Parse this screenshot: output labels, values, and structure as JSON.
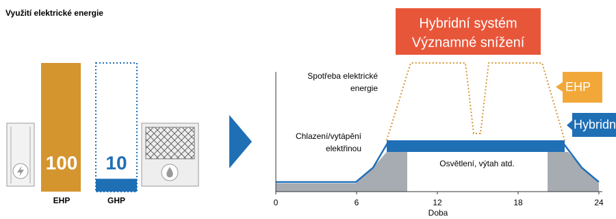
{
  "title": "Využití elektrické energie",
  "units": [
    {
      "label": "EHP",
      "value": 100,
      "color": "#d4952f"
    },
    {
      "label": "GHP",
      "value": 10,
      "color": "#1f6fb5"
    }
  ],
  "timeline": {
    "xlim": [
      0,
      24
    ],
    "xticks": [
      0,
      6,
      12,
      18,
      24
    ],
    "xlabel": "Doba",
    "callout": [
      "Hybridní systém",
      "Významné snížení"
    ],
    "annotations": [
      "Spotřeba elektrické",
      "energie",
      "Chlazení/vytápění",
      "elektřinou",
      "Osvětlení, výtah atd."
    ],
    "tags": [
      "EHP",
      "Hybridní"
    ]
  }
}
